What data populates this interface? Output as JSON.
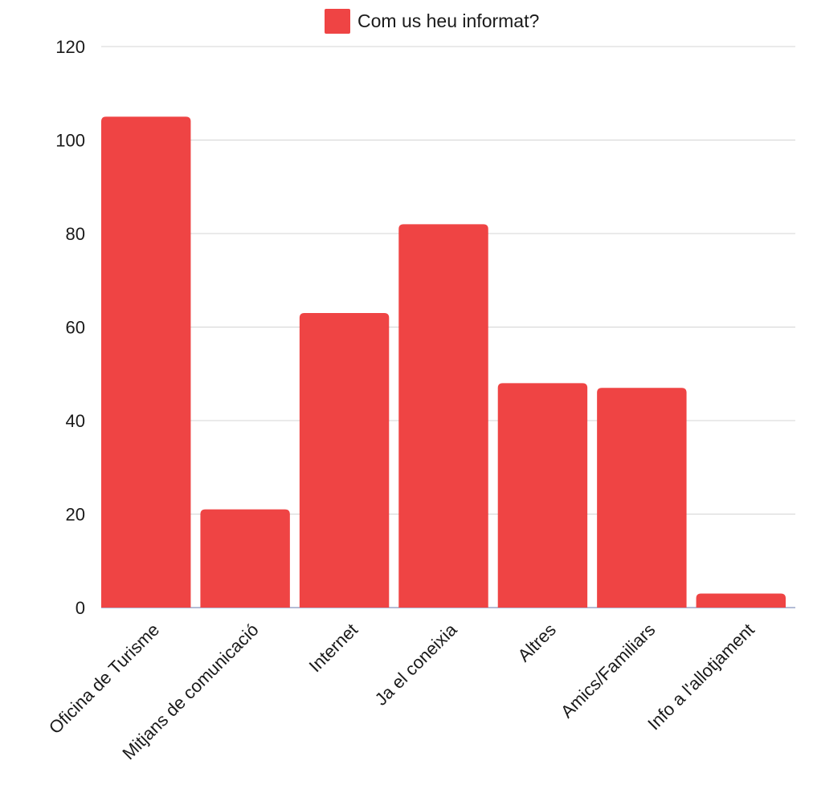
{
  "chart_data": {
    "type": "bar",
    "title": "",
    "xlabel": "",
    "ylabel": "",
    "ylim": [
      0,
      120
    ],
    "yticks": [
      0,
      20,
      40,
      60,
      80,
      100,
      120
    ],
    "grid": true,
    "legend_position": "top-center",
    "categories": [
      "Oficina de Turisme",
      "Mitjans de comunicació",
      "Internet",
      "Ja el coneixia",
      "Altres",
      "Amics/Familiars",
      "Info a l'allotjament"
    ],
    "series": [
      {
        "name": "Com us heu informat?",
        "color": "#ef4444",
        "values": [
          105,
          21,
          63,
          82,
          48,
          47,
          3
        ]
      }
    ]
  }
}
